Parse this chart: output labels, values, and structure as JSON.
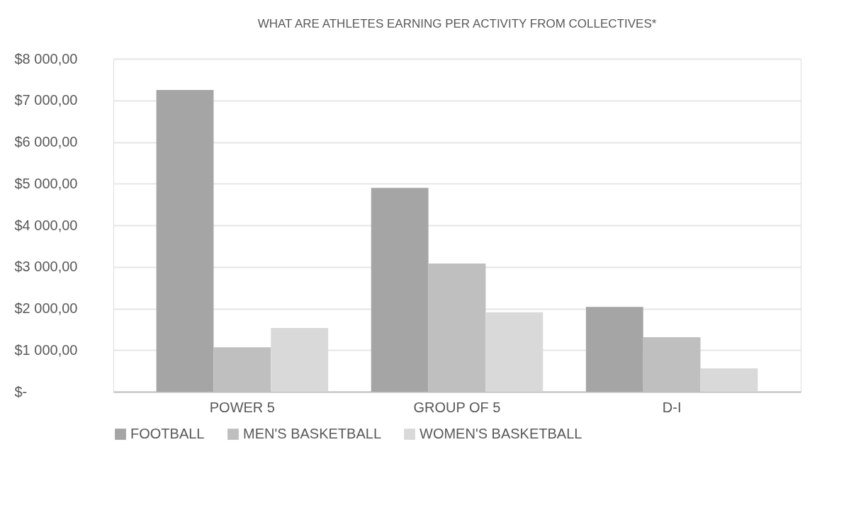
{
  "chart_data": {
    "type": "bar",
    "title": "WHAT ARE ATHLETES EARNING PER ACTIVITY FROM COLLECTIVES*",
    "categories": [
      "POWER 5",
      "GROUP OF 5",
      "D-I"
    ],
    "series": [
      {
        "name": "FOOTBALL",
        "color": "#a5a5a5",
        "values": [
          7250,
          4900,
          2040
        ]
      },
      {
        "name": "MEN'S BASKETBALL",
        "color": "#bfbfbf",
        "values": [
          1070,
          3080,
          1310
        ]
      },
      {
        "name": "WOMEN'S BASKETBALL",
        "color": "#d9d9d9",
        "values": [
          1530,
          1910,
          560
        ]
      }
    ],
    "ylim": [
      0,
      8000
    ],
    "yticks": [
      {
        "value": 0,
        "label": "$-"
      },
      {
        "value": 1000,
        "label": "$1 000,00"
      },
      {
        "value": 2000,
        "label": "$2 000,00"
      },
      {
        "value": 3000,
        "label": "$3 000,00"
      },
      {
        "value": 4000,
        "label": "$4 000,00"
      },
      {
        "value": 5000,
        "label": "$5 000,00"
      },
      {
        "value": 6000,
        "label": "$6 000,00"
      },
      {
        "value": 7000,
        "label": "$7 000,00"
      },
      {
        "value": 8000,
        "label": "$8 000,00"
      }
    ],
    "grid": "y",
    "legend": "bottom"
  }
}
